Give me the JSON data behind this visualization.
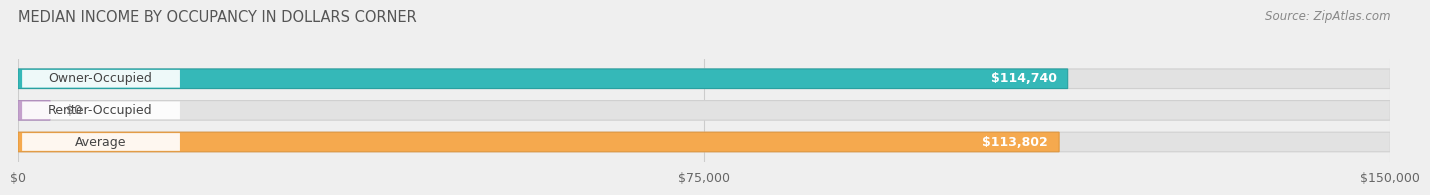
{
  "title": "MEDIAN INCOME BY OCCUPANCY IN DOLLARS CORNER",
  "source_text": "Source: ZipAtlas.com",
  "categories": [
    "Owner-Occupied",
    "Renter-Occupied",
    "Average"
  ],
  "values": [
    114740,
    0,
    113802
  ],
  "bar_colors": [
    "#35b8b8",
    "#c4a0cc",
    "#f5a94e"
  ],
  "bar_border_colors": [
    "#2aa0a0",
    "#b090bc",
    "#e0963c"
  ],
  "value_labels": [
    "$114,740",
    "$0",
    "$113,802"
  ],
  "xlim": [
    0,
    150000
  ],
  "xtick_vals": [
    0,
    75000,
    150000
  ],
  "xtick_labels": [
    "$0",
    "$75,000",
    "$150,000"
  ],
  "bar_height": 0.62,
  "background_color": "#efefef",
  "bar_bg_color": "#e2e2e2",
  "bar_bg_border": "#d0d0d0",
  "label_bg": "#ffffff",
  "renter_small_val": 3500
}
